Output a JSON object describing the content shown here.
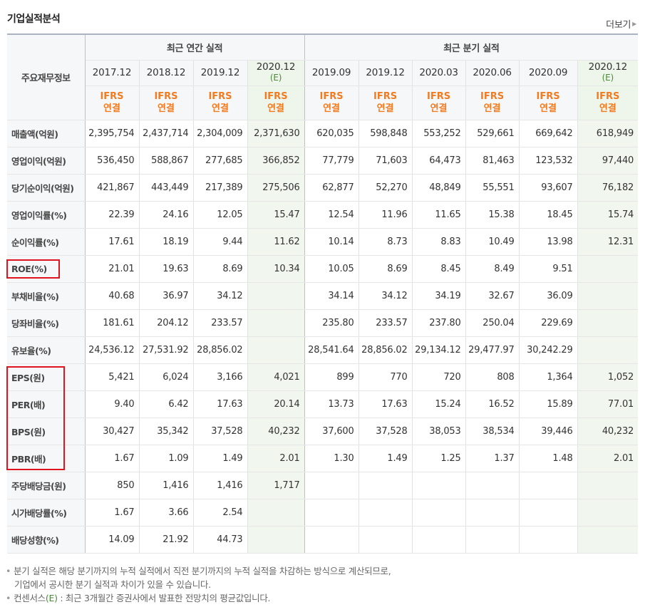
{
  "title": "기업실적분석",
  "more_label": "더보기",
  "corner_label": "주요재무정보",
  "groups": {
    "annual": "최근 연간 실적",
    "quarter": "최근 분기 실적"
  },
  "periods": [
    {
      "date": "2017.12",
      "est": ""
    },
    {
      "date": "2018.12",
      "est": ""
    },
    {
      "date": "2019.12",
      "est": ""
    },
    {
      "date": "2020.12",
      "est": "(E)"
    },
    {
      "date": "2019.09",
      "est": ""
    },
    {
      "date": "2019.12",
      "est": ""
    },
    {
      "date": "2020.03",
      "est": ""
    },
    {
      "date": "2020.06",
      "est": ""
    },
    {
      "date": "2020.09",
      "est": ""
    },
    {
      "date": "2020.12",
      "est": "(E)"
    }
  ],
  "ifrs": {
    "top": "IFRS",
    "bottom": "연결"
  },
  "rows": [
    {
      "label": "매출액(억원)",
      "values": [
        "2,395,754",
        "2,437,714",
        "2,304,009",
        "2,371,630",
        "620,035",
        "598,848",
        "553,252",
        "529,661",
        "669,642",
        "618,949"
      ]
    },
    {
      "label": "영업이익(억원)",
      "values": [
        "536,450",
        "588,867",
        "277,685",
        "366,852",
        "77,779",
        "71,603",
        "64,473",
        "81,463",
        "123,532",
        "97,440"
      ]
    },
    {
      "label": "당기순이익(억원)",
      "values": [
        "421,867",
        "443,449",
        "217,389",
        "275,506",
        "62,877",
        "52,270",
        "48,849",
        "55,551",
        "93,607",
        "76,182"
      ]
    },
    {
      "label": "영업이익률(%)",
      "values": [
        "22.39",
        "24.16",
        "12.05",
        "15.47",
        "12.54",
        "11.96",
        "11.65",
        "15.38",
        "18.45",
        "15.74"
      ]
    },
    {
      "label": "순이익률(%)",
      "values": [
        "17.61",
        "18.19",
        "9.44",
        "11.62",
        "10.14",
        "8.73",
        "8.83",
        "10.49",
        "13.98",
        "12.31"
      ]
    },
    {
      "label": "ROE(%)",
      "values": [
        "21.01",
        "19.63",
        "8.69",
        "10.34",
        "10.05",
        "8.69",
        "8.45",
        "8.49",
        "9.51",
        ""
      ]
    },
    {
      "label": "부채비율(%)",
      "values": [
        "40.68",
        "36.97",
        "34.12",
        "",
        "34.14",
        "34.12",
        "34.19",
        "32.67",
        "36.09",
        ""
      ]
    },
    {
      "label": "당좌비율(%)",
      "values": [
        "181.61",
        "204.12",
        "233.57",
        "",
        "235.80",
        "233.57",
        "237.80",
        "250.04",
        "229.69",
        ""
      ]
    },
    {
      "label": "유보율(%)",
      "values": [
        "24,536.12",
        "27,531.92",
        "28,856.02",
        "",
        "28,541.64",
        "28,856.02",
        "29,134.12",
        "29,477.97",
        "30,242.29",
        ""
      ]
    },
    {
      "label": "EPS(원)",
      "values": [
        "5,421",
        "6,024",
        "3,166",
        "4,021",
        "899",
        "770",
        "720",
        "808",
        "1,364",
        "1,052"
      ]
    },
    {
      "label": "PER(배)",
      "values": [
        "9.40",
        "6.42",
        "17.63",
        "20.14",
        "13.73",
        "17.63",
        "15.24",
        "16.52",
        "15.89",
        "77.01"
      ]
    },
    {
      "label": "BPS(원)",
      "values": [
        "30,427",
        "35,342",
        "37,528",
        "40,232",
        "37,600",
        "37,528",
        "38,053",
        "38,534",
        "39,446",
        "40,232"
      ]
    },
    {
      "label": "PBR(배)",
      "values": [
        "1.67",
        "1.09",
        "1.49",
        "2.01",
        "1.30",
        "1.49",
        "1.25",
        "1.37",
        "1.48",
        "2.01"
      ]
    },
    {
      "label": "주당배당금(원)",
      "values": [
        "850",
        "1,416",
        "1,416",
        "1,717",
        "",
        "",
        "",
        "",
        "",
        ""
      ]
    },
    {
      "label": "시가배당률(%)",
      "values": [
        "1.67",
        "3.66",
        "2.54",
        "",
        "",
        "",
        "",
        "",
        "",
        ""
      ]
    },
    {
      "label": "배당성향(%)",
      "values": [
        "14.09",
        "21.92",
        "44.73",
        "",
        "",
        "",
        "",
        "",
        "",
        ""
      ]
    }
  ],
  "notes": {
    "line1": "분기 실적은 해당 분기까지의 누적 실적에서 직전 분기까지의 누적 실적을 차감하는 방식으로 계산되므로,",
    "line2": "기업에서 공시한 분기 실적과 차이가 있을 수 있습니다.",
    "line3_prefix": "컨센서스",
    "line3_mark": "(E)",
    "line3_rest": " : 최근 3개월간 증권사에서 발표한 전망치의 평균값입니다."
  }
}
